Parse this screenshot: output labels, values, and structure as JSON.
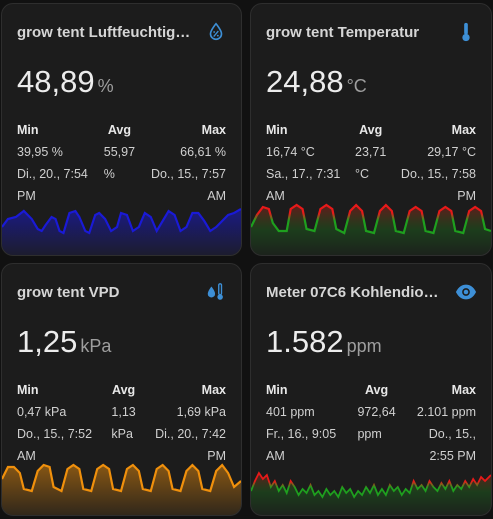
{
  "cards": [
    {
      "title": "grow tent Luftfeuchtig…",
      "icon": "water-percent-icon",
      "value": "48,89",
      "unit": "%",
      "stats": {
        "min_label": "Min",
        "avg_label": "Avg",
        "max_label": "Max",
        "min_value": "39,95 %",
        "min_time_1": "Di., 20., 7:54",
        "min_time_2": "PM",
        "avg_value": "55,97",
        "avg_unit": "%",
        "max_value": "66,61 %",
        "max_time_1": "Do., 15., 7:57",
        "max_time_2": "AM"
      },
      "graph_colors": [
        "#1a1ad6"
      ]
    },
    {
      "title": "grow tent Temperatur",
      "icon": "thermometer-icon",
      "value": "24,88",
      "unit": "°C",
      "stats": {
        "min_label": "Min",
        "avg_label": "Avg",
        "max_label": "Max",
        "min_value": "16,74 °C",
        "min_time_1": "Sa., 17., 7:31",
        "min_time_2": "AM",
        "avg_value": "23,71",
        "avg_unit": "°C",
        "max_value": "29,17 °C",
        "max_time_1": "Do., 15., 7:58",
        "max_time_2": "PM"
      },
      "graph_colors": [
        "#e81919",
        "#1ea01e"
      ]
    },
    {
      "title": "grow tent VPD",
      "icon": "water-thermometer-icon",
      "value": "1,25",
      "unit": "kPa",
      "stats": {
        "min_label": "Min",
        "avg_label": "Avg",
        "max_label": "Max",
        "min_value": "0,47 kPa",
        "min_time_1": "Do., 15., 7:52",
        "min_time_2": "AM",
        "avg_value": "1,13",
        "avg_unit": "kPa",
        "max_value": "1,69 kPa",
        "max_time_1": "Di., 20., 7:42",
        "max_time_2": "PM"
      },
      "graph_colors": [
        "#f0900c"
      ]
    },
    {
      "title": "Meter 07C6 Kohlendio…",
      "icon": "eye-icon",
      "value": "1.582",
      "unit": "ppm",
      "stats": {
        "min_label": "Min",
        "avg_label": "Avg",
        "max_label": "Max",
        "min_value": "401 ppm",
        "min_time_1": "Fr., 16., 9:05",
        "min_time_2": "AM",
        "avg_value": "972,64",
        "avg_unit": "ppm",
        "max_value": "2.101 ppm",
        "max_time_1": "Do., 15.,",
        "max_time_2": "2:55 PM"
      },
      "graph_colors": [
        "#e81919",
        "#1ea01e"
      ]
    }
  ]
}
